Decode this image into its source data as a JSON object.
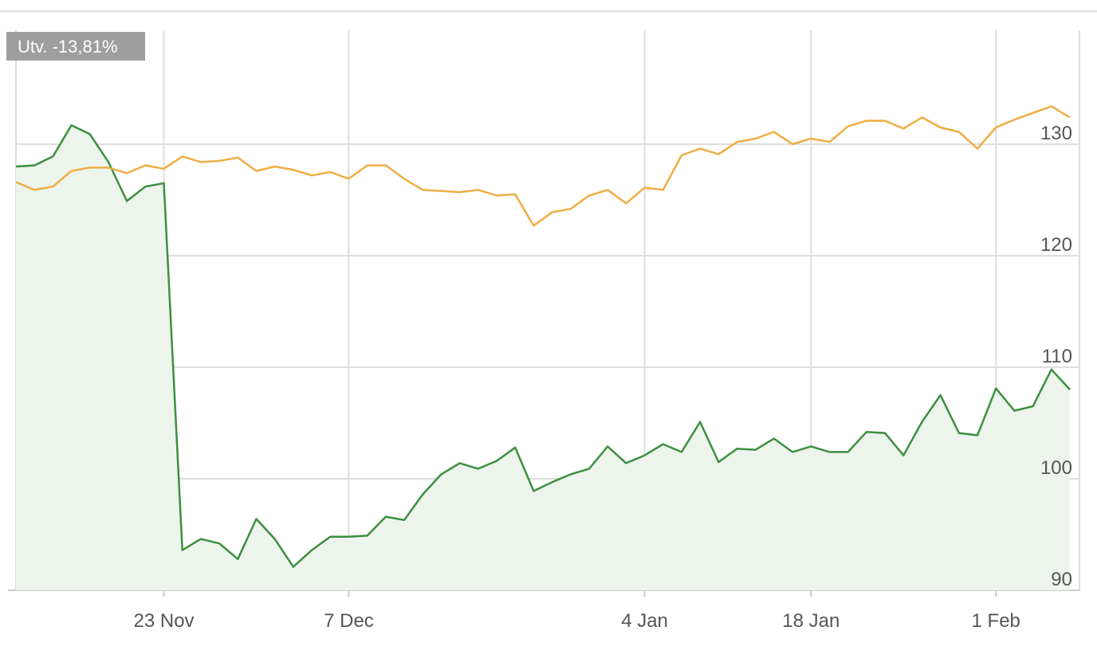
{
  "chart_data": {
    "type": "line",
    "annotation": "Utv. -13,81%",
    "categories": [
      null,
      null,
      null,
      null,
      null,
      null,
      null,
      null,
      "23 Nov",
      null,
      null,
      null,
      null,
      null,
      null,
      null,
      null,
      null,
      "7 Dec",
      null,
      null,
      null,
      null,
      null,
      null,
      null,
      null,
      null,
      null,
      null,
      null,
      null,
      null,
      null,
      "4 Jan",
      null,
      null,
      null,
      null,
      null,
      null,
      null,
      null,
      "18 Jan",
      null,
      null,
      null,
      null,
      null,
      null,
      null,
      null,
      null,
      "1 Feb",
      null,
      null,
      null,
      null
    ],
    "series": [
      {
        "color": "#3d8f3f",
        "fill": "#ecf4ec",
        "values": [
          128.0,
          128.1,
          128.9,
          131.7,
          130.9,
          128.4,
          124.9,
          126.2,
          126.5,
          93.6,
          94.6,
          94.2,
          92.8,
          96.4,
          94.6,
          92.1,
          93.6,
          94.8,
          94.8,
          94.9,
          96.6,
          96.3,
          98.6,
          100.4,
          101.4,
          100.9,
          101.6,
          102.8,
          98.9,
          99.7,
          100.4,
          100.9,
          102.9,
          101.4,
          102.1,
          103.1,
          102.4,
          105.1,
          101.5,
          102.7,
          102.6,
          103.6,
          102.4,
          102.9,
          102.4,
          102.4,
          104.2,
          104.1,
          102.1,
          105.1,
          107.5,
          104.1,
          103.9,
          108.1,
          106.1,
          106.5,
          109.8,
          108.0
        ]
      },
      {
        "color": "#f0ad44",
        "values": [
          126.6,
          125.9,
          126.2,
          127.6,
          127.9,
          127.9,
          127.4,
          128.1,
          127.8,
          128.9,
          128.4,
          128.5,
          128.8,
          127.6,
          128.0,
          127.7,
          127.2,
          127.5,
          126.9,
          128.1,
          128.1,
          126.9,
          125.9,
          125.8,
          125.7,
          125.9,
          125.4,
          125.5,
          122.7,
          123.9,
          124.2,
          125.4,
          125.9,
          124.7,
          126.1,
          125.9,
          129.0,
          129.6,
          129.1,
          130.2,
          130.5,
          131.1,
          130.0,
          130.5,
          130.2,
          131.6,
          132.1,
          132.1,
          131.4,
          132.4,
          131.5,
          131.1,
          129.6,
          131.5,
          132.2,
          132.8,
          133.4,
          132.4
        ]
      }
    ],
    "ylim": [
      90,
      140
    ],
    "yticks": [
      90,
      100,
      110,
      120,
      130
    ],
    "grid": true
  }
}
